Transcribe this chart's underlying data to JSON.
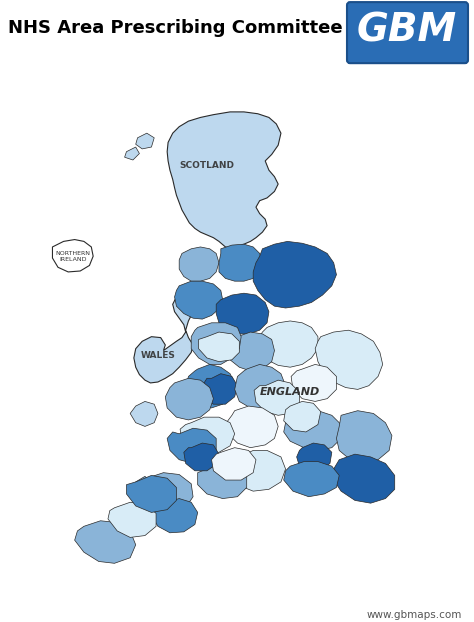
{
  "title": "NHS Area Prescribing Committee",
  "title_fontsize": 13,
  "title_color": "#000000",
  "gbm_text": "GBM",
  "gbm_bg": "#2a6db5",
  "gbm_text_color": "#ffffff",
  "website": "www.gbmaps.com",
  "website_color": "#555555",
  "background_color": "#ffffff",
  "label_scotland": "SCOTLAND",
  "label_northern_ireland": "NORTHERN\nIRELAND",
  "label_wales": "WALES",
  "label_england": "ENGLAND",
  "label_color": "#333333",
  "border_color": "#2a2a2a",
  "border_width": 0.5,
  "colors": {
    "dark_blue": "#1f5fa6",
    "mid_blue": "#4a8bc4",
    "light_blue": "#8ab4d8",
    "very_light_blue": "#bdd8ee",
    "pale_blue": "#d8ecf7",
    "white_blue": "#eef6fc",
    "outline_only": "#ffffff"
  },
  "figsize": [
    4.74,
    6.22
  ],
  "dpi": 100
}
